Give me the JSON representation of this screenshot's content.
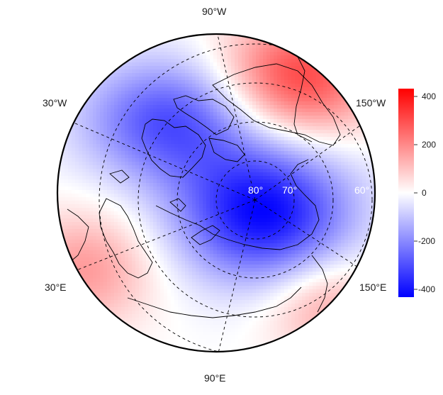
{
  "map": {
    "projection": "north-polar-stereographic",
    "longitude_labels": {
      "top": "90°W",
      "upper_left": "30°W",
      "upper_right": "150°W",
      "lower_left": "30°E",
      "lower_right": "150°E",
      "bottom": "90°E"
    },
    "latitude_labels": [
      "80°",
      "70°",
      "60°"
    ],
    "latitude_circles": [
      80,
      70,
      60,
      50
    ],
    "meridians_dashed": true,
    "field": {
      "description_values": "anomaly field, min approx -420 over Arctic/Siberia, max approx +320 over NE Pacific/Alaska",
      "min_value": -420,
      "max_value": 320,
      "centers": [
        {
          "sign": "negative",
          "value": -420
        },
        {
          "sign": "negative",
          "value": -300
        },
        {
          "sign": "positive",
          "value": 320
        },
        {
          "sign": "positive",
          "value": 170
        },
        {
          "sign": "positive",
          "value": 150
        }
      ]
    }
  },
  "colorbar": {
    "ticks": [
      "400",
      "200",
      "0",
      "-200",
      "-400"
    ],
    "range": [
      -430,
      430
    ],
    "colors": {
      "low": "#0000ff",
      "mid": "#ffffff",
      "high": "#ff0000"
    }
  },
  "colors": {
    "coastline": "#000000",
    "grid": "#000000",
    "latlabel": "#ffffff"
  }
}
